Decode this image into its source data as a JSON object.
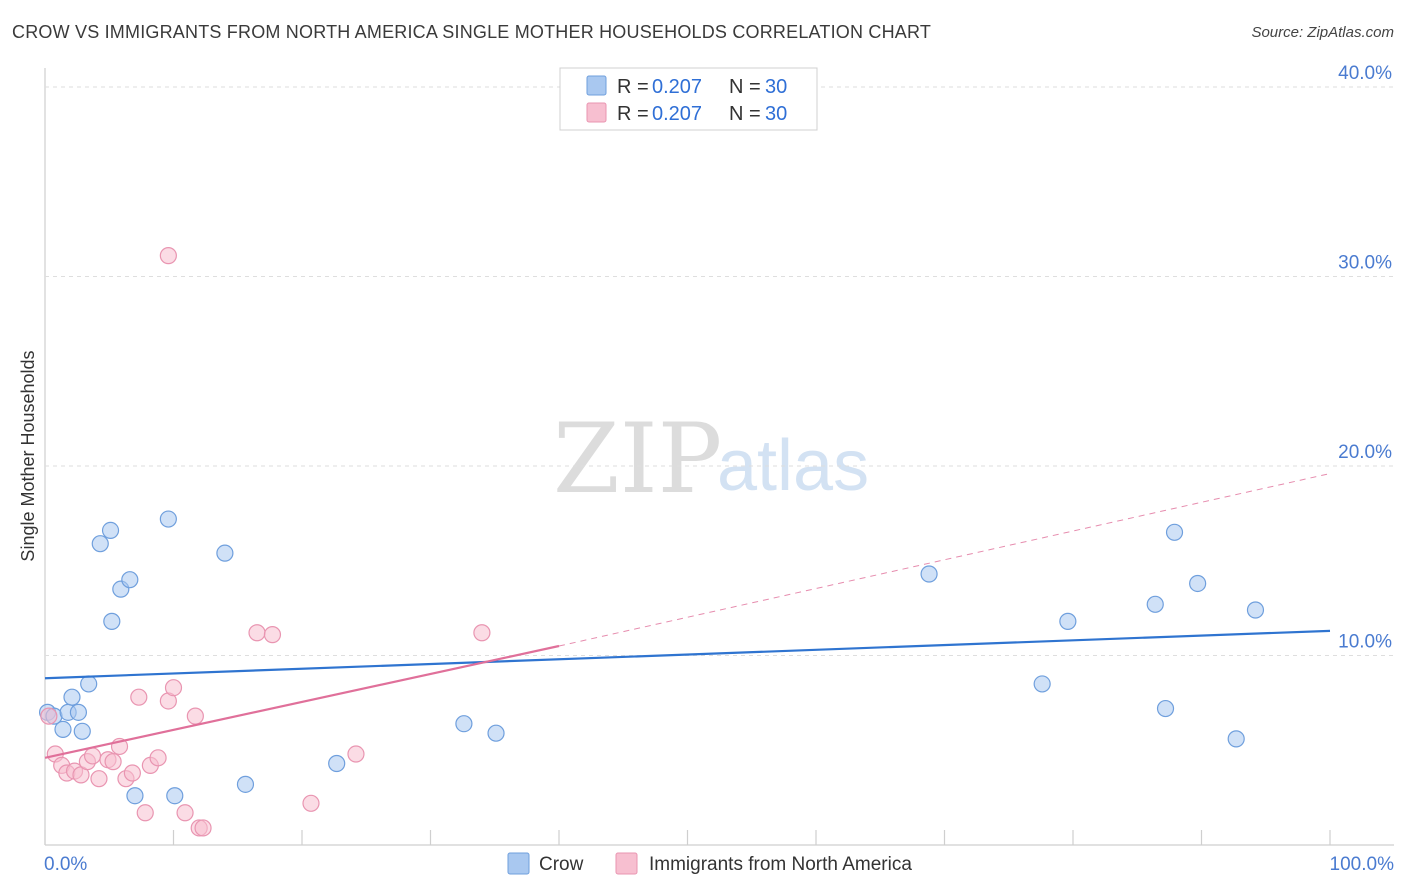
{
  "header": {
    "title": "CROW VS IMMIGRANTS FROM NORTH AMERICA SINGLE MOTHER HOUSEHOLDS CORRELATION CHART",
    "source": "Source: ZipAtlas.com"
  },
  "watermark": {
    "zip": "ZIP",
    "atlas": "atlas"
  },
  "legend_top": {
    "rows": [
      {
        "r_label": "R = ",
        "r_value": "0.207",
        "n_label": "N = ",
        "n_value": "30",
        "color": "#a9c8f0",
        "stroke": "#6f9fdd"
      },
      {
        "r_label": "R = ",
        "r_value": "0.207",
        "n_label": "N = ",
        "n_value": "30",
        "color": "#f7bfd0",
        "stroke": "#e995b1"
      }
    ]
  },
  "legend_bottom": [
    {
      "label": "Crow",
      "color": "#a9c8f0",
      "stroke": "#6f9fdd"
    },
    {
      "label": "Immigrants from North America",
      "color": "#f7bfd0",
      "stroke": "#e995b1"
    }
  ],
  "chart_data": {
    "type": "scatter",
    "title": "CROW VS IMMIGRANTS FROM NORTH AMERICA SINGLE MOTHER HOUSEHOLDS CORRELATION CHART",
    "xlabel": "",
    "ylabel": "Single Mother Households",
    "xlim": [
      0,
      100
    ],
    "ylim": [
      0,
      41
    ],
    "x_tick_labels": [
      "0.0%",
      "100.0%"
    ],
    "y_ticks": [
      10,
      20,
      30,
      40
    ],
    "y_tick_labels": [
      "10.0%",
      "20.0%",
      "30.0%",
      "40.0%"
    ],
    "grid": true,
    "series": [
      {
        "name": "Crow",
        "color": "#a9c8f0",
        "stroke": "#6f9fdd",
        "line_color": "#2f74d0",
        "trend": {
          "x0": 0,
          "y0": 8.8,
          "x1": 100,
          "y1": 11.3,
          "dashed_from": null
        },
        "points": [
          [
            0.2,
            7.0
          ],
          [
            0.7,
            6.8
          ],
          [
            1.4,
            6.1
          ],
          [
            1.8,
            7.0
          ],
          [
            2.1,
            7.8
          ],
          [
            2.6,
            7.0
          ],
          [
            2.9,
            6.0
          ],
          [
            3.4,
            8.5
          ],
          [
            4.3,
            15.9
          ],
          [
            5.1,
            16.6
          ],
          [
            5.2,
            11.8
          ],
          [
            5.9,
            13.5
          ],
          [
            6.6,
            14.0
          ],
          [
            7.0,
            2.6
          ],
          [
            9.6,
            17.2
          ],
          [
            10.1,
            2.6
          ],
          [
            14.0,
            15.4
          ],
          [
            15.6,
            3.2
          ],
          [
            22.7,
            4.3
          ],
          [
            32.6,
            6.4
          ],
          [
            35.1,
            5.9
          ],
          [
            68.8,
            14.3
          ],
          [
            77.6,
            8.5
          ],
          [
            79.6,
            11.8
          ],
          [
            86.4,
            12.7
          ],
          [
            87.2,
            7.2
          ],
          [
            87.9,
            16.5
          ],
          [
            89.7,
            13.8
          ],
          [
            92.7,
            5.6
          ],
          [
            94.2,
            12.4
          ]
        ]
      },
      {
        "name": "Immigrants from North America",
        "color": "#f7bfd0",
        "stroke": "#e995b1",
        "line_color": "#e0709a",
        "trend": {
          "x0": 0,
          "y0": 4.6,
          "x1": 40,
          "y1": 10.5,
          "dashed_to_x": 100,
          "dashed_to_y": 19.6
        },
        "points": [
          [
            0.3,
            6.8
          ],
          [
            0.8,
            4.8
          ],
          [
            1.3,
            4.2
          ],
          [
            1.7,
            3.8
          ],
          [
            2.3,
            3.9
          ],
          [
            2.8,
            3.7
          ],
          [
            3.3,
            4.4
          ],
          [
            3.7,
            4.7
          ],
          [
            4.2,
            3.5
          ],
          [
            4.9,
            4.5
          ],
          [
            5.3,
            4.4
          ],
          [
            5.8,
            5.2
          ],
          [
            6.3,
            3.5
          ],
          [
            6.8,
            3.8
          ],
          [
            7.3,
            7.8
          ],
          [
            7.8,
            1.7
          ],
          [
            8.2,
            4.2
          ],
          [
            8.8,
            4.6
          ],
          [
            9.6,
            7.6
          ],
          [
            9.6,
            31.1
          ],
          [
            10.0,
            8.3
          ],
          [
            10.9,
            1.7
          ],
          [
            11.7,
            6.8
          ],
          [
            12.0,
            0.9
          ],
          [
            12.3,
            0.9
          ],
          [
            16.5,
            11.2
          ],
          [
            17.7,
            11.1
          ],
          [
            20.7,
            2.2
          ],
          [
            24.2,
            4.8
          ],
          [
            34.0,
            11.2
          ]
        ]
      }
    ]
  }
}
